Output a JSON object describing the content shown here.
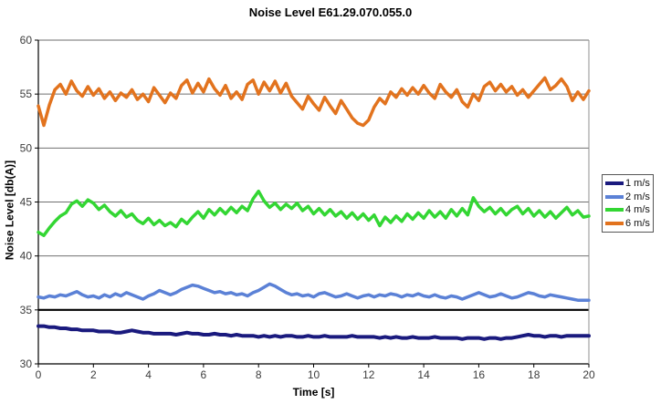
{
  "chart_data": {
    "type": "line",
    "title": "Noise Level E61.29.070.055.0",
    "xlabel": "Time [s]",
    "ylabel": "Noise Level [db(A)]",
    "xlim": [
      0,
      20
    ],
    "ylim": [
      30,
      60
    ],
    "xticks": [
      0,
      2,
      4,
      6,
      8,
      10,
      12,
      14,
      16,
      18,
      20
    ],
    "yticks": [
      30,
      35,
      40,
      45,
      50,
      55,
      60
    ],
    "grid": "horizontal",
    "gridline_color": "#6f6f6f",
    "reference_line": {
      "y": 35,
      "color": "#000000",
      "width": 2.2
    },
    "legend_position": "right-middle",
    "x_start": 0,
    "x_step": 0.2,
    "series": [
      {
        "name": "1 m/s",
        "color": "#1a1a7e",
        "width": 4,
        "values": [
          33.5,
          33.5,
          33.4,
          33.4,
          33.3,
          33.3,
          33.2,
          33.2,
          33.1,
          33.1,
          33.1,
          33.0,
          33.0,
          33.0,
          32.9,
          32.9,
          33.0,
          33.1,
          33.0,
          32.9,
          32.9,
          32.8,
          32.8,
          32.8,
          32.8,
          32.7,
          32.8,
          32.9,
          32.8,
          32.8,
          32.7,
          32.7,
          32.8,
          32.7,
          32.7,
          32.6,
          32.7,
          32.6,
          32.6,
          32.6,
          32.5,
          32.6,
          32.5,
          32.6,
          32.5,
          32.6,
          32.6,
          32.5,
          32.5,
          32.6,
          32.5,
          32.5,
          32.6,
          32.5,
          32.5,
          32.5,
          32.5,
          32.6,
          32.5,
          32.5,
          32.5,
          32.5,
          32.4,
          32.5,
          32.4,
          32.5,
          32.4,
          32.4,
          32.5,
          32.4,
          32.4,
          32.4,
          32.5,
          32.4,
          32.4,
          32.4,
          32.4,
          32.3,
          32.4,
          32.4,
          32.4,
          32.3,
          32.4,
          32.4,
          32.3,
          32.4,
          32.4,
          32.5,
          32.6,
          32.7,
          32.6,
          32.6,
          32.5,
          32.6,
          32.6,
          32.5,
          32.6,
          32.6,
          32.6,
          32.6,
          32.6
        ]
      },
      {
        "name": "2 m/s",
        "color": "#5b81d6",
        "width": 3.5,
        "values": [
          36.2,
          36.1,
          36.3,
          36.2,
          36.4,
          36.3,
          36.5,
          36.7,
          36.4,
          36.2,
          36.3,
          36.1,
          36.4,
          36.2,
          36.5,
          36.3,
          36.6,
          36.4,
          36.2,
          36.0,
          36.3,
          36.5,
          36.8,
          36.6,
          36.4,
          36.6,
          36.9,
          37.1,
          37.3,
          37.2,
          37.0,
          36.8,
          36.6,
          36.7,
          36.5,
          36.6,
          36.4,
          36.5,
          36.3,
          36.6,
          36.8,
          37.1,
          37.4,
          37.2,
          36.9,
          36.6,
          36.4,
          36.5,
          36.3,
          36.4,
          36.2,
          36.5,
          36.6,
          36.4,
          36.2,
          36.3,
          36.5,
          36.3,
          36.1,
          36.3,
          36.4,
          36.2,
          36.4,
          36.3,
          36.5,
          36.4,
          36.2,
          36.4,
          36.3,
          36.5,
          36.3,
          36.2,
          36.4,
          36.2,
          36.1,
          36.3,
          36.2,
          36.0,
          36.2,
          36.4,
          36.6,
          36.4,
          36.2,
          36.3,
          36.5,
          36.3,
          36.1,
          36.2,
          36.4,
          36.6,
          36.5,
          36.3,
          36.2,
          36.4,
          36.3,
          36.2,
          36.1,
          36.0,
          35.9,
          35.9,
          35.9
        ]
      },
      {
        "name": "4 m/s",
        "color": "#33d633",
        "width": 3.5,
        "values": [
          42.2,
          41.9,
          42.6,
          43.2,
          43.7,
          44.0,
          44.8,
          45.1,
          44.6,
          45.2,
          44.9,
          44.3,
          44.7,
          44.1,
          43.7,
          44.2,
          43.6,
          43.9,
          43.3,
          43.0,
          43.5,
          42.9,
          43.3,
          42.8,
          43.1,
          42.7,
          43.4,
          43.0,
          43.6,
          44.1,
          43.5,
          44.3,
          43.8,
          44.4,
          43.9,
          44.5,
          44.0,
          44.6,
          44.2,
          45.3,
          46.0,
          45.1,
          44.5,
          44.9,
          44.3,
          44.8,
          44.4,
          44.9,
          44.2,
          44.6,
          43.9,
          44.4,
          43.8,
          44.3,
          43.7,
          44.1,
          43.5,
          44.0,
          43.4,
          43.9,
          43.3,
          43.8,
          42.8,
          43.6,
          43.1,
          43.7,
          43.2,
          43.9,
          43.4,
          44.0,
          43.5,
          44.2,
          43.6,
          44.1,
          43.5,
          44.3,
          43.7,
          44.4,
          43.8,
          45.4,
          44.6,
          44.1,
          44.5,
          43.9,
          44.4,
          43.8,
          44.3,
          44.6,
          43.9,
          44.4,
          43.7,
          44.2,
          43.6,
          44.1,
          43.5,
          44.0,
          44.5,
          43.8,
          44.2,
          43.6,
          43.7
        ]
      },
      {
        "name": "6 m/s",
        "color": "#e2731e",
        "width": 3.5,
        "values": [
          53.9,
          52.1,
          54.0,
          55.4,
          55.9,
          55.0,
          56.2,
          55.3,
          54.8,
          55.7,
          54.9,
          55.5,
          54.6,
          55.2,
          54.4,
          55.1,
          54.7,
          55.4,
          54.5,
          55.0,
          54.3,
          55.6,
          54.9,
          54.2,
          55.1,
          54.6,
          55.8,
          56.3,
          55.1,
          56.0,
          55.2,
          56.4,
          55.5,
          54.9,
          55.8,
          54.6,
          55.2,
          54.5,
          55.9,
          56.3,
          55.0,
          56.1,
          55.3,
          56.2,
          55.1,
          56.0,
          54.8,
          54.2,
          53.6,
          54.8,
          54.1,
          53.5,
          54.7,
          53.9,
          53.2,
          54.4,
          53.6,
          52.8,
          52.3,
          52.1,
          52.6,
          53.8,
          54.6,
          54.1,
          55.2,
          54.7,
          55.5,
          54.9,
          55.6,
          55.0,
          55.8,
          55.1,
          54.6,
          55.9,
          55.2,
          54.7,
          55.4,
          54.3,
          53.8,
          55.0,
          54.4,
          55.7,
          56.1,
          55.3,
          55.9,
          55.2,
          55.7,
          54.9,
          55.4,
          54.7,
          55.3,
          55.9,
          56.5,
          55.4,
          55.8,
          56.4,
          55.7,
          54.4,
          55.2,
          54.5,
          55.3
        ]
      }
    ]
  }
}
